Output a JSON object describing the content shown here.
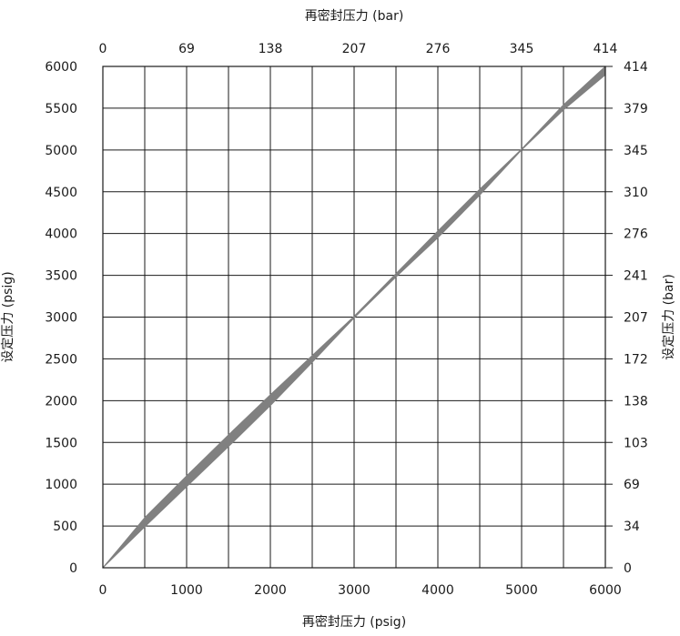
{
  "chart_data": {
    "type": "area",
    "title": "",
    "xlabel": "再密封压力 (psig)",
    "ylabel": "设定压力 (psig)",
    "x2label": "再密封压力 (bar)",
    "y2label": "设定压力 (bar)",
    "xlim": [
      0,
      6000
    ],
    "ylim": [
      0,
      6000
    ],
    "xticks": [
      "0",
      "1000",
      "2000",
      "3000",
      "4000",
      "5000",
      "6000"
    ],
    "yticks": [
      "0",
      "500",
      "1000",
      "1500",
      "2000",
      "2500",
      "3000",
      "3500",
      "4000",
      "4500",
      "5000",
      "5500",
      "6000"
    ],
    "x2ticks": [
      "0",
      "69",
      "138",
      "207",
      "276",
      "345",
      "414"
    ],
    "y2ticks": [
      "0",
      "34",
      "69",
      "103",
      "138",
      "172",
      "207",
      "241",
      "276",
      "310",
      "345",
      "379",
      "414"
    ],
    "grid": true,
    "band_color": "#808080",
    "series": [
      {
        "x": [
          0,
          500,
          1000,
          1500,
          2000,
          2500,
          3000,
          3500,
          4000,
          4500,
          5000,
          5500,
          6000
        ],
        "upper": [
          0,
          600,
          1100,
          1590,
          2070,
          2540,
          3010,
          3520,
          4030,
          4530,
          5010,
          5540,
          6000
        ],
        "lower": [
          0,
          490,
          970,
          1450,
          1940,
          2460,
          2990,
          3480,
          3950,
          4460,
          5000,
          5480,
          5900
        ]
      }
    ]
  }
}
